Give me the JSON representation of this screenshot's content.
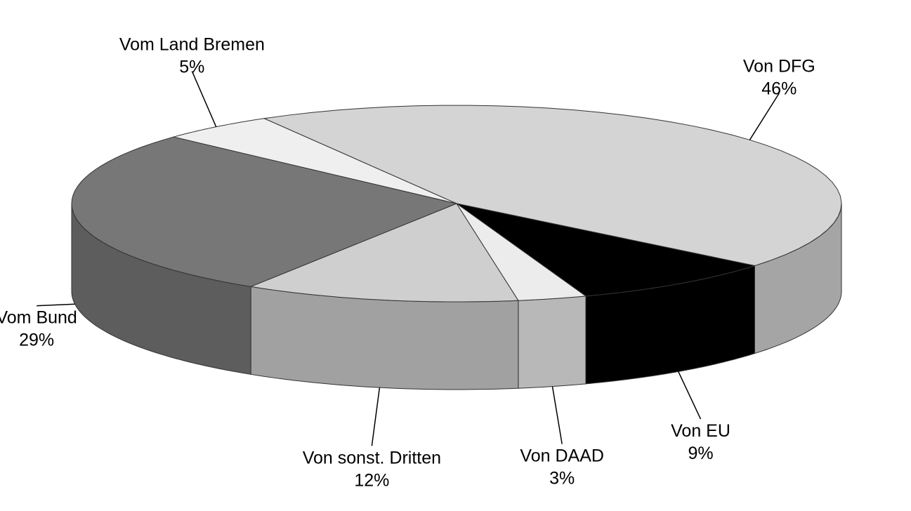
{
  "chart_data": {
    "type": "pie",
    "categories": [
      "Von DFG",
      "Von EU",
      "Von DAAD",
      "Von sonst. Dritten",
      "Vom Bund",
      "Vom Land Bremen"
    ],
    "values": [
      46,
      9,
      3,
      12,
      29,
      5
    ],
    "value_labels": [
      "46%",
      "9%",
      "3%",
      "12%",
      "29%",
      "5%"
    ],
    "colors": [
      "#d4d4d4",
      "#000000",
      "#ececec",
      "#cfcfcf",
      "#777777",
      "#efefef"
    ]
  }
}
